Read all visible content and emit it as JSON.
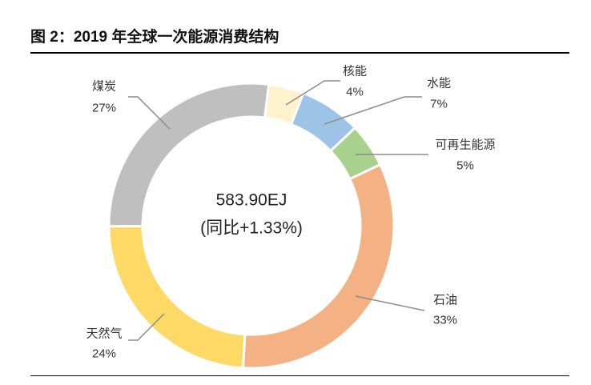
{
  "chart_data": {
    "type": "pie",
    "donut": true,
    "title": "图 2：2019 年全球一次能源消费结构",
    "categories": [
      "核能",
      "水能",
      "可再生能源",
      "石油",
      "天然气",
      "煤炭"
    ],
    "values": [
      4,
      7,
      5,
      33,
      24,
      27
    ],
    "data_labels": [
      "4%",
      "7%",
      "5%",
      "33%",
      "24%",
      "27%"
    ],
    "colors": [
      "#FFF2CC",
      "#9DC3E6",
      "#A9D18E",
      "#F4B183",
      "#FFD966",
      "#BFBFBF"
    ],
    "center_text": {
      "total": "583.90EJ",
      "change": "(同比+1.33%)"
    }
  }
}
